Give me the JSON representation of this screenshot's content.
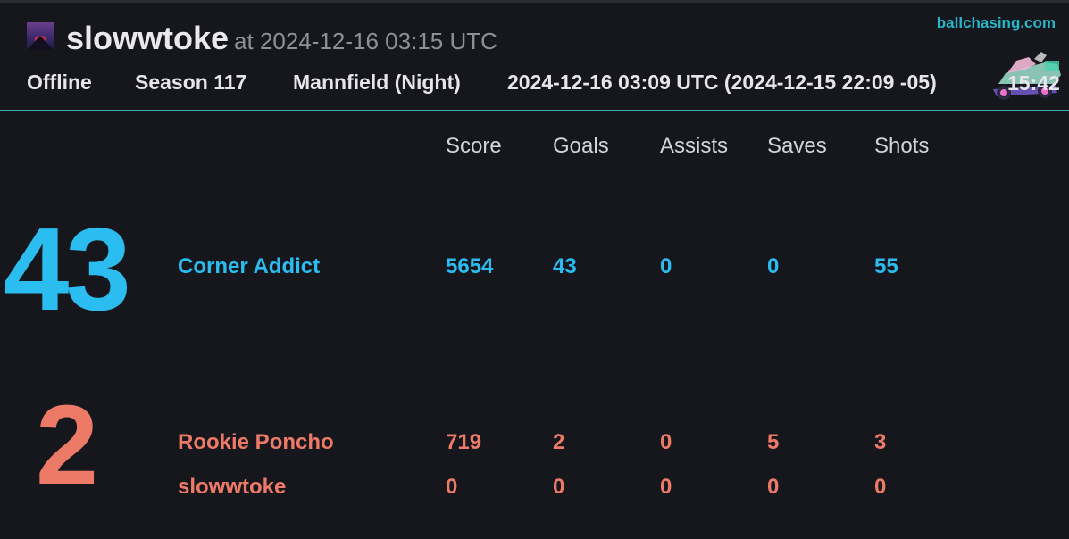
{
  "header": {
    "uploader": "slowwtoke",
    "uploaded_at": "at 2024-12-16 03:15 UTC",
    "site_link": "ballchasing.com",
    "playlist": "Offline",
    "season": "Season 117",
    "map": "Mannfield (Night)",
    "match_date": "2024-12-16 03:09 UTC (2024-12-15 22:09 -05)",
    "duration": "15:42",
    "car_icon": "car-icon"
  },
  "columns": [
    "Score",
    "Goals",
    "Assists",
    "Saves",
    "Shots"
  ],
  "teams": [
    {
      "color": "#2bbcf0",
      "goals": "43",
      "players": [
        {
          "name": "Corner Addict",
          "score": "5654",
          "goals": "43",
          "assists": "0",
          "saves": "0",
          "shots": "55"
        }
      ]
    },
    {
      "color": "#ec7a67",
      "goals": "2",
      "players": [
        {
          "name": "Rookie Poncho",
          "score": "719",
          "goals": "2",
          "assists": "0",
          "saves": "5",
          "shots": "3"
        },
        {
          "name": "slowwtoke",
          "score": "0",
          "goals": "0",
          "assists": "0",
          "saves": "0",
          "shots": "0"
        }
      ]
    }
  ]
}
